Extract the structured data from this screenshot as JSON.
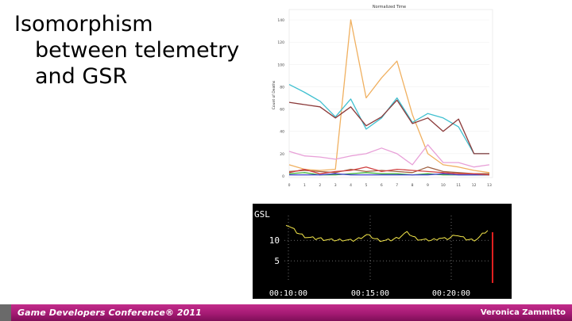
{
  "slide": {
    "title_line1": "Isomorphism",
    "title_line2": "between telemetry",
    "title_line3": "and GSR"
  },
  "footer": {
    "conference": "Game Developers Conference® 2011",
    "presenter": "Veronica Zammitto",
    "colors": {
      "band": "#a51a74"
    }
  },
  "chart_data": [
    {
      "type": "line",
      "title": "Normalized Time",
      "ylabel": "Count of Deaths",
      "xlabel": "",
      "x": [
        0,
        1,
        2,
        3,
        4,
        5,
        6,
        7,
        8,
        9,
        10,
        11,
        12,
        13
      ],
      "yticks": [
        0,
        20,
        40,
        60,
        80,
        100,
        120,
        140
      ],
      "ylim": [
        0,
        145
      ],
      "series": [
        {
          "color": "#f0b060",
          "values": [
            10,
            6,
            5,
            6,
            140,
            70,
            88,
            103,
            55,
            20,
            10,
            8,
            5,
            3
          ]
        },
        {
          "color": "#40c0d0",
          "values": [
            82,
            75,
            67,
            53,
            69,
            42,
            52,
            70,
            48,
            56,
            52,
            44,
            20,
            20
          ]
        },
        {
          "color": "#8b3a3a",
          "values": [
            66,
            64,
            62,
            52,
            62,
            45,
            53,
            68,
            47,
            52,
            40,
            51,
            20,
            20
          ]
        },
        {
          "color": "#e8a0d8",
          "values": [
            22,
            18,
            17,
            15,
            18,
            20,
            25,
            20,
            10,
            28,
            12,
            12,
            8,
            10
          ]
        },
        {
          "color": "#a06040",
          "values": [
            4,
            5,
            4,
            3,
            6,
            4,
            5,
            4,
            3,
            8,
            4,
            3,
            2,
            2
          ]
        },
        {
          "color": "#40b040",
          "values": [
            2,
            3,
            1,
            1,
            2,
            3,
            2,
            2,
            1,
            2,
            1,
            1,
            1,
            1
          ]
        },
        {
          "color": "#4040d0",
          "values": [
            1,
            1,
            1,
            2,
            1,
            1,
            1,
            1,
            1,
            1,
            2,
            1,
            1,
            1
          ]
        },
        {
          "color": "#d04040",
          "values": [
            3,
            6,
            2,
            4,
            5,
            8,
            4,
            6,
            5,
            4,
            3,
            2,
            2,
            1
          ]
        }
      ]
    },
    {
      "type": "line",
      "title": "GSL",
      "xticks": [
        "00:10:00",
        "00:15:00",
        "00:20:00"
      ],
      "yticks": [
        5,
        10
      ],
      "ylim": [
        0,
        17
      ],
      "series": [
        {
          "color": "#f5e84a",
          "values": [
            14,
            13.5,
            13,
            12.5,
            12,
            11.6,
            11.3,
            11,
            10.8,
            10.6,
            10.5,
            10.4,
            10.5,
            10.4,
            10.3,
            10.2,
            10.1,
            10,
            10.1,
            10,
            10.1,
            10.2,
            10.1,
            10,
            9.9,
            10,
            10.2,
            10.4,
            10.8,
            11.1,
            11.3,
            11,
            10.8,
            10.4,
            10.2,
            10.1,
            10,
            9.9,
            10,
            10.1,
            10.3,
            10.5,
            10.8,
            11.2,
            11.6,
            11.8,
            11.5,
            11,
            10.6,
            10.4,
            10.2,
            10.1,
            10,
            10.1,
            10,
            10.2,
            10.4,
            10.6,
            10.4,
            10.3,
            10.4,
            10.6,
            11,
            11.5,
            11.2,
            10.8,
            10.5,
            10.3,
            10.2,
            10.1,
            10.2,
            10.4,
            10.8,
            11.4,
            12,
            12.4
          ]
        }
      ],
      "marker": {
        "color": "#e02020",
        "at": "end"
      }
    }
  ]
}
